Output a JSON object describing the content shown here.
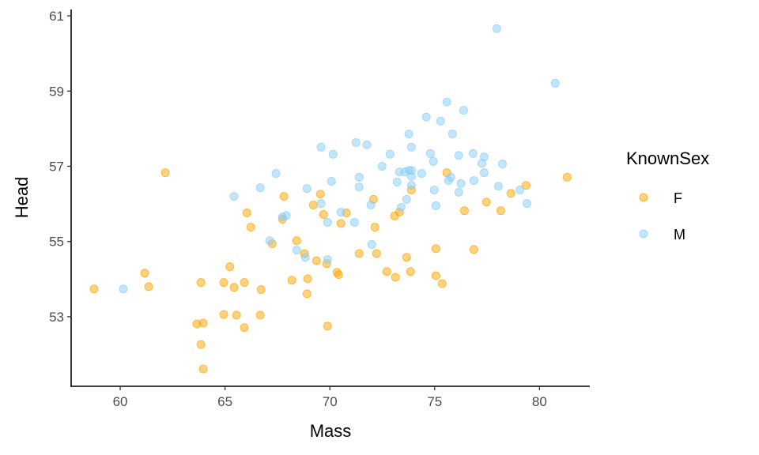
{
  "chart_data": {
    "type": "scatter",
    "title": "",
    "xlabel": "Mass",
    "ylabel": "Head",
    "xlim": [
      57.66,
      82.4
    ],
    "ylim": [
      51.15,
      61.17
    ],
    "xticks": [
      60,
      65,
      70,
      75,
      80
    ],
    "yticks": [
      53,
      55,
      57,
      59,
      61
    ],
    "grid": false,
    "legend": {
      "title": "KnownSex",
      "placement": "right"
    },
    "series": [
      {
        "name": "F",
        "color": "#FFA500",
        "points": [
          [
            58.75,
            53.74
          ],
          [
            61.17,
            54.16
          ],
          [
            61.36,
            53.8
          ],
          [
            62.15,
            56.83
          ],
          [
            63.85,
            53.91
          ],
          [
            63.66,
            52.81
          ],
          [
            63.96,
            52.83
          ],
          [
            63.85,
            52.26
          ],
          [
            63.96,
            51.61
          ],
          [
            65.23,
            54.33
          ],
          [
            64.94,
            53.91
          ],
          [
            65.43,
            53.78
          ],
          [
            64.94,
            53.06
          ],
          [
            65.55,
            53.04
          ],
          [
            65.92,
            53.91
          ],
          [
            65.92,
            52.71
          ],
          [
            66.04,
            55.76
          ],
          [
            66.23,
            55.38
          ],
          [
            66.72,
            53.72
          ],
          [
            66.68,
            53.04
          ],
          [
            67.25,
            54.94
          ],
          [
            67.74,
            55.59
          ],
          [
            67.81,
            56.2
          ],
          [
            68.19,
            53.97
          ],
          [
            68.42,
            55.02
          ],
          [
            68.79,
            54.68
          ],
          [
            68.94,
            54.01
          ],
          [
            68.91,
            53.61
          ],
          [
            69.21,
            55.97
          ],
          [
            69.36,
            54.49
          ],
          [
            69.55,
            56.26
          ],
          [
            69.7,
            55.72
          ],
          [
            69.85,
            54.41
          ],
          [
            69.89,
            52.75
          ],
          [
            70.34,
            54.18
          ],
          [
            70.42,
            54.12
          ],
          [
            70.53,
            55.48
          ],
          [
            70.79,
            55.76
          ],
          [
            71.4,
            54.68
          ],
          [
            72.08,
            56.12
          ],
          [
            72.15,
            55.38
          ],
          [
            72.23,
            54.68
          ],
          [
            72.72,
            54.2
          ],
          [
            73.09,
            55.68
          ],
          [
            73.32,
            55.78
          ],
          [
            73.13,
            54.05
          ],
          [
            73.66,
            54.58
          ],
          [
            73.85,
            54.2
          ],
          [
            73.89,
            56.37
          ],
          [
            75.06,
            54.81
          ],
          [
            75.06,
            54.09
          ],
          [
            75.36,
            53.88
          ],
          [
            75.58,
            56.83
          ],
          [
            76.42,
            55.82
          ],
          [
            76.87,
            54.79
          ],
          [
            77.47,
            56.05
          ],
          [
            78.15,
            55.82
          ],
          [
            78.64,
            56.28
          ],
          [
            79.36,
            56.49
          ],
          [
            81.32,
            56.71
          ]
        ]
      },
      {
        "name": "M",
        "color": "#87CEFA",
        "points": [
          [
            60.15,
            53.74
          ],
          [
            65.43,
            56.2
          ],
          [
            66.68,
            56.43
          ],
          [
            67.43,
            56.81
          ],
          [
            67.13,
            55.02
          ],
          [
            67.74,
            55.65
          ],
          [
            67.92,
            55.69
          ],
          [
            68.42,
            54.77
          ],
          [
            68.83,
            54.58
          ],
          [
            68.91,
            56.41
          ],
          [
            69.58,
            57.51
          ],
          [
            69.58,
            56.01
          ],
          [
            69.89,
            55.51
          ],
          [
            69.89,
            54.52
          ],
          [
            70.08,
            56.6
          ],
          [
            70.15,
            57.32
          ],
          [
            70.53,
            55.78
          ],
          [
            71.17,
            55.51
          ],
          [
            71.25,
            57.63
          ],
          [
            71.4,
            56.71
          ],
          [
            71.4,
            56.45
          ],
          [
            71.77,
            57.57
          ],
          [
            71.96,
            55.97
          ],
          [
            72.0,
            54.92
          ],
          [
            72.49,
            57.0
          ],
          [
            72.87,
            57.32
          ],
          [
            73.21,
            56.58
          ],
          [
            73.32,
            56.85
          ],
          [
            73.4,
            55.91
          ],
          [
            73.58,
            56.85
          ],
          [
            73.66,
            56.12
          ],
          [
            73.77,
            57.86
          ],
          [
            73.77,
            56.89
          ],
          [
            73.89,
            57.51
          ],
          [
            73.89,
            56.89
          ],
          [
            73.89,
            56.73
          ],
          [
            73.89,
            56.49
          ],
          [
            74.38,
            56.81
          ],
          [
            74.6,
            58.31
          ],
          [
            74.79,
            57.34
          ],
          [
            74.94,
            57.13
          ],
          [
            74.98,
            56.37
          ],
          [
            75.06,
            55.95
          ],
          [
            75.28,
            58.2
          ],
          [
            75.58,
            58.71
          ],
          [
            75.66,
            56.62
          ],
          [
            75.77,
            56.71
          ],
          [
            75.85,
            57.86
          ],
          [
            76.15,
            57.29
          ],
          [
            76.15,
            56.31
          ],
          [
            76.26,
            56.54
          ],
          [
            76.38,
            58.49
          ],
          [
            76.83,
            57.34
          ],
          [
            76.87,
            56.62
          ],
          [
            77.25,
            57.08
          ],
          [
            77.36,
            57.25
          ],
          [
            77.36,
            56.83
          ],
          [
            77.96,
            60.66
          ],
          [
            78.04,
            56.47
          ],
          [
            78.23,
            57.06
          ],
          [
            79.06,
            56.37
          ],
          [
            79.4,
            56.01
          ],
          [
            80.75,
            59.21
          ]
        ]
      }
    ]
  }
}
